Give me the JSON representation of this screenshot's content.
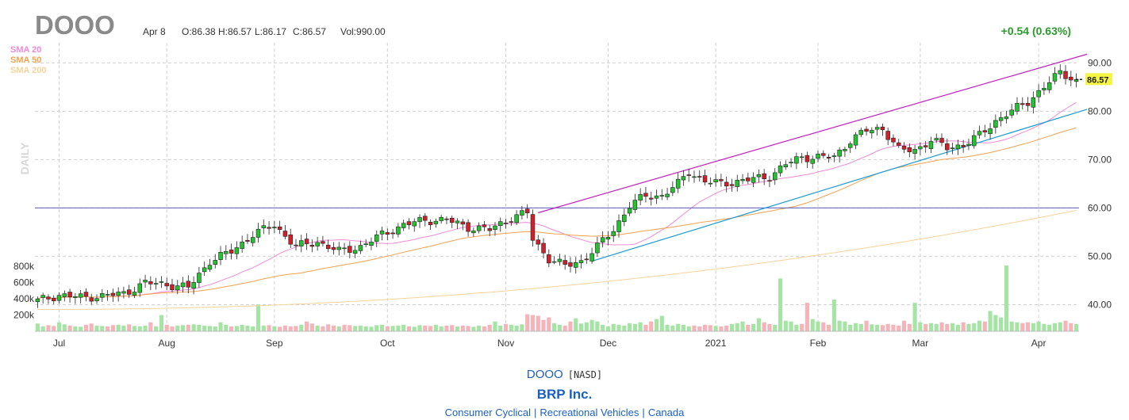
{
  "header": {
    "ticker": "DOOO",
    "date": "Apr 8",
    "open": "O:86.38",
    "high": "H:86.57",
    "low": "L:86.17",
    "close": "C:86.57",
    "volume": "Vol:990.00",
    "change": "+0.54 (0.63%)"
  },
  "colors": {
    "up": "#22c32e",
    "down": "#d21f2a",
    "sma20": "#f08ad6",
    "sma50": "#f2a150",
    "sma200": "#f6d39a",
    "channel_upper": "#c020c0",
    "channel_lower": "#1a9ad6",
    "hline": "#5b5bbd",
    "change": "#2c9a2c",
    "price_tag": "#f5f545",
    "link": "#1b5fbf"
  },
  "chart_data": {
    "type": "candlestick",
    "timeframe_label": "DAILY",
    "legend": [
      "SMA 20",
      "SMA 50",
      "SMA 200"
    ],
    "last_price": "86.57",
    "ylim": [
      34.5,
      93.5
    ],
    "y_ticks": [
      "40.00",
      "50.00",
      "60.00",
      "70.00",
      "80.00",
      "90.00"
    ],
    "volume_ticks": [
      "200k",
      "400k",
      "600k",
      "800k"
    ],
    "x_labels": [
      {
        "label": "Jul",
        "index": 4
      },
      {
        "label": "Aug",
        "index": 24
      },
      {
        "label": "Sep",
        "index": 44
      },
      {
        "label": "Oct",
        "index": 65
      },
      {
        "label": "Nov",
        "index": 87
      },
      {
        "label": "Dec",
        "index": 106
      },
      {
        "label": "2021",
        "index": 126
      },
      {
        "label": "Feb",
        "index": 145
      },
      {
        "label": "Mar",
        "index": 164
      },
      {
        "label": "Apr",
        "index": 186
      }
    ],
    "horizontal_line": 60.0,
    "channel_upper": {
      "from": [
        93,
        59
      ],
      "to": [
        195,
        91.8
      ]
    },
    "channel_lower": {
      "from": [
        103,
        49.0
      ],
      "to": [
        195,
        80.4
      ]
    },
    "close_anchors": [
      [
        0,
        40.8
      ],
      [
        4,
        42.0
      ],
      [
        8,
        41.5
      ],
      [
        12,
        41.8
      ],
      [
        16,
        42.3
      ],
      [
        20,
        44.5
      ],
      [
        24,
        44.2
      ],
      [
        28,
        43.5
      ],
      [
        32,
        49.0
      ],
      [
        36,
        51.0
      ],
      [
        40,
        54.5
      ],
      [
        44,
        56.5
      ],
      [
        48,
        52.0
      ],
      [
        52,
        53.0
      ],
      [
        56,
        51.0
      ],
      [
        60,
        52.0
      ],
      [
        64,
        54.5
      ],
      [
        68,
        56.5
      ],
      [
        72,
        57.5
      ],
      [
        76,
        57.5
      ],
      [
        80,
        56.0
      ],
      [
        84,
        55.5
      ],
      [
        88,
        58.0
      ],
      [
        91,
        59.0
      ],
      [
        92,
        53.5
      ],
      [
        95,
        49.5
      ],
      [
        98,
        48.0
      ],
      [
        101,
        49.0
      ],
      [
        104,
        52.0
      ],
      [
        107,
        55.5
      ],
      [
        110,
        60.5
      ],
      [
        113,
        62.5
      ],
      [
        116,
        62.5
      ],
      [
        119,
        65.0
      ],
      [
        121,
        67.5
      ],
      [
        124,
        65.5
      ],
      [
        127,
        65.0
      ],
      [
        130,
        65.5
      ],
      [
        133,
        66.0
      ],
      [
        136,
        66.5
      ],
      [
        139,
        69.0
      ],
      [
        142,
        70.5
      ],
      [
        145,
        70.5
      ],
      [
        148,
        70.5
      ],
      [
        151,
        74.0
      ],
      [
        154,
        76.0
      ],
      [
        157,
        76.5
      ],
      [
        160,
        72.0
      ],
      [
        163,
        72.0
      ],
      [
        166,
        74.0
      ],
      [
        169,
        72.5
      ],
      [
        172,
        73.0
      ],
      [
        175,
        75.0
      ],
      [
        178,
        78.0
      ],
      [
        181,
        80.0
      ],
      [
        184,
        82.0
      ],
      [
        187,
        85.0
      ],
      [
        190,
        88.0
      ],
      [
        193,
        86.57
      ]
    ],
    "volume_k": [
      95,
      60,
      75,
      65,
      110,
      85,
      70,
      60,
      55,
      80,
      95,
      70,
      65,
      60,
      75,
      80,
      70,
      85,
      65,
      60,
      70,
      110,
      60,
      200,
      80,
      60,
      70,
      75,
      80,
      85,
      80,
      70,
      65,
      60,
      110,
      80,
      60,
      65,
      80,
      70,
      60,
      330,
      70,
      75,
      60,
      55,
      70,
      60,
      65,
      80,
      120,
      95,
      70,
      60,
      85,
      70,
      60,
      80,
      75,
      65,
      70,
      60,
      55,
      75,
      80,
      60,
      65,
      70,
      80,
      60,
      55,
      75,
      70,
      65,
      80,
      60,
      70,
      75,
      60,
      70,
      65,
      55,
      70,
      60,
      80,
      120,
      70,
      90,
      80,
      70,
      85,
      210,
      200,
      190,
      140,
      170,
      100,
      80,
      70,
      120,
      160,
      95,
      110,
      140,
      120,
      80,
      60,
      90,
      80,
      70,
      100,
      90,
      110,
      80,
      120,
      150,
      190,
      80,
      70,
      90,
      80,
      60,
      70,
      60,
      80,
      75,
      65,
      60,
      70,
      90,
      100,
      120,
      80,
      90,
      160,
      110,
      90,
      80,
      650,
      130,
      120,
      80,
      90,
      350,
      150,
      120,
      110,
      80,
      390,
      130,
      120,
      80,
      100,
      90,
      130,
      85,
      80,
      75,
      90,
      80,
      70,
      130,
      90,
      350,
      110,
      90,
      100,
      90,
      110,
      90,
      100,
      80,
      110,
      90,
      100,
      130,
      120,
      250,
      200,
      170,
      810,
      120,
      110,
      100,
      110,
      100,
      120,
      90,
      80,
      100,
      110,
      130,
      100,
      90
    ]
  },
  "footer": {
    "ticker": "DOOO",
    "exchange": "[NASD]",
    "company": "BRP Inc.",
    "sector": "Consumer Cyclical",
    "industry": "Recreational Vehicles",
    "country": "Canada",
    "separator": "|"
  }
}
